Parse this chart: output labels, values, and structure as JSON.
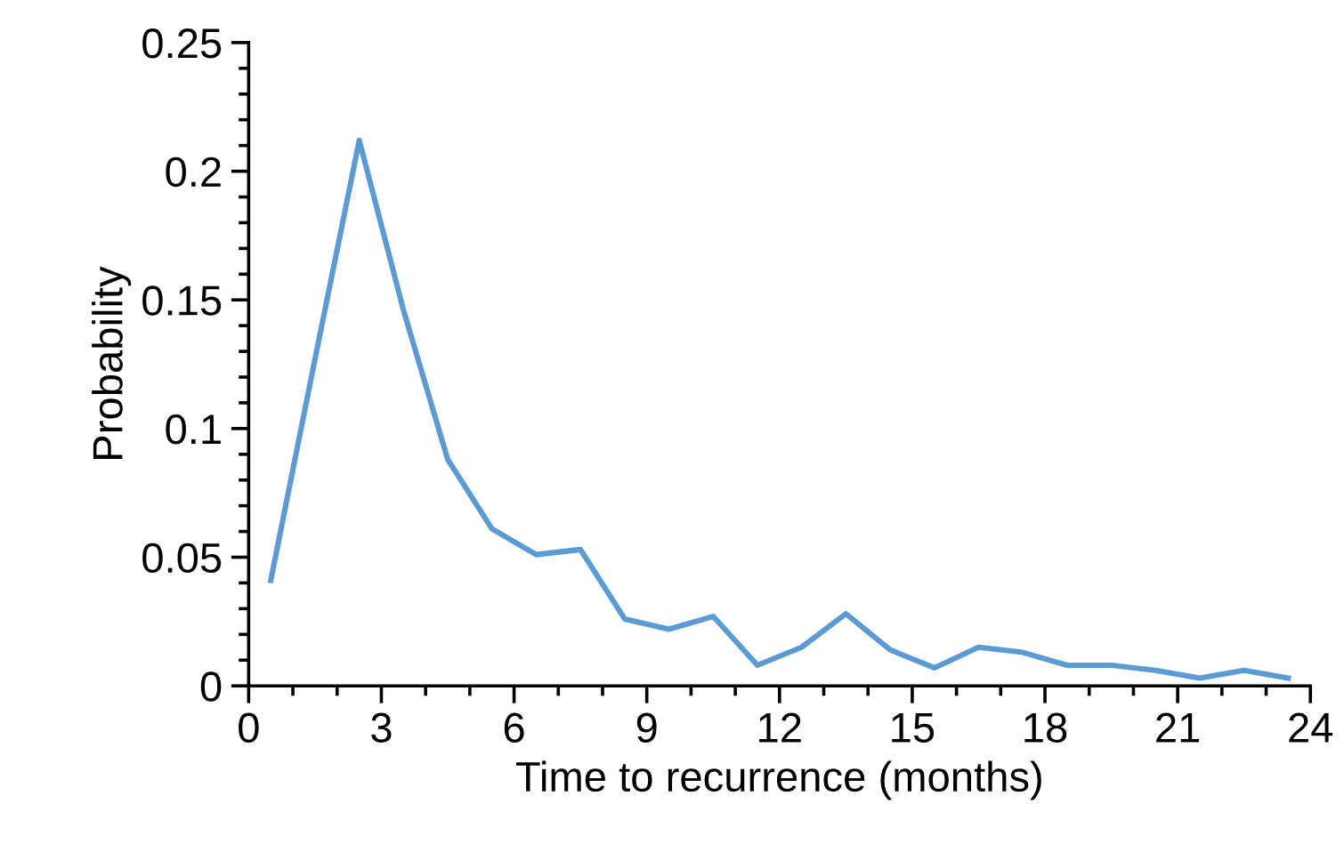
{
  "chart_data": {
    "type": "line",
    "xlabel": "Time to recurrence (months)",
    "ylabel": "Probability",
    "x": [
      0.5,
      1.5,
      2.5,
      3.5,
      4.5,
      5.5,
      6.5,
      7.5,
      8.5,
      9.5,
      10.5,
      11.5,
      12.5,
      13.5,
      14.5,
      15.5,
      16.5,
      17.5,
      18.5,
      19.5,
      20.5,
      21.5,
      22.5,
      23.5
    ],
    "series": [
      {
        "color": "#5b9bd5",
        "values": [
          0.041,
          0.127,
          0.212,
          0.146,
          0.088,
          0.061,
          0.051,
          0.053,
          0.026,
          0.022,
          0.027,
          0.008,
          0.015,
          0.028,
          0.014,
          0.007,
          0.015,
          0.013,
          0.008,
          0.008,
          0.006,
          0.003,
          0.006,
          0.003
        ]
      }
    ],
    "xlim": [
      0,
      24
    ],
    "xticks": [
      0,
      3,
      6,
      9,
      12,
      15,
      18,
      21,
      24
    ],
    "ylim": [
      0,
      0.25
    ],
    "yticks": [
      {
        "value": 0,
        "label": "0"
      },
      0.05,
      0.1,
      0.15,
      0.2,
      0.25
    ],
    "grid": false,
    "legend": false,
    "marker": "none",
    "line_style": "solid"
  }
}
